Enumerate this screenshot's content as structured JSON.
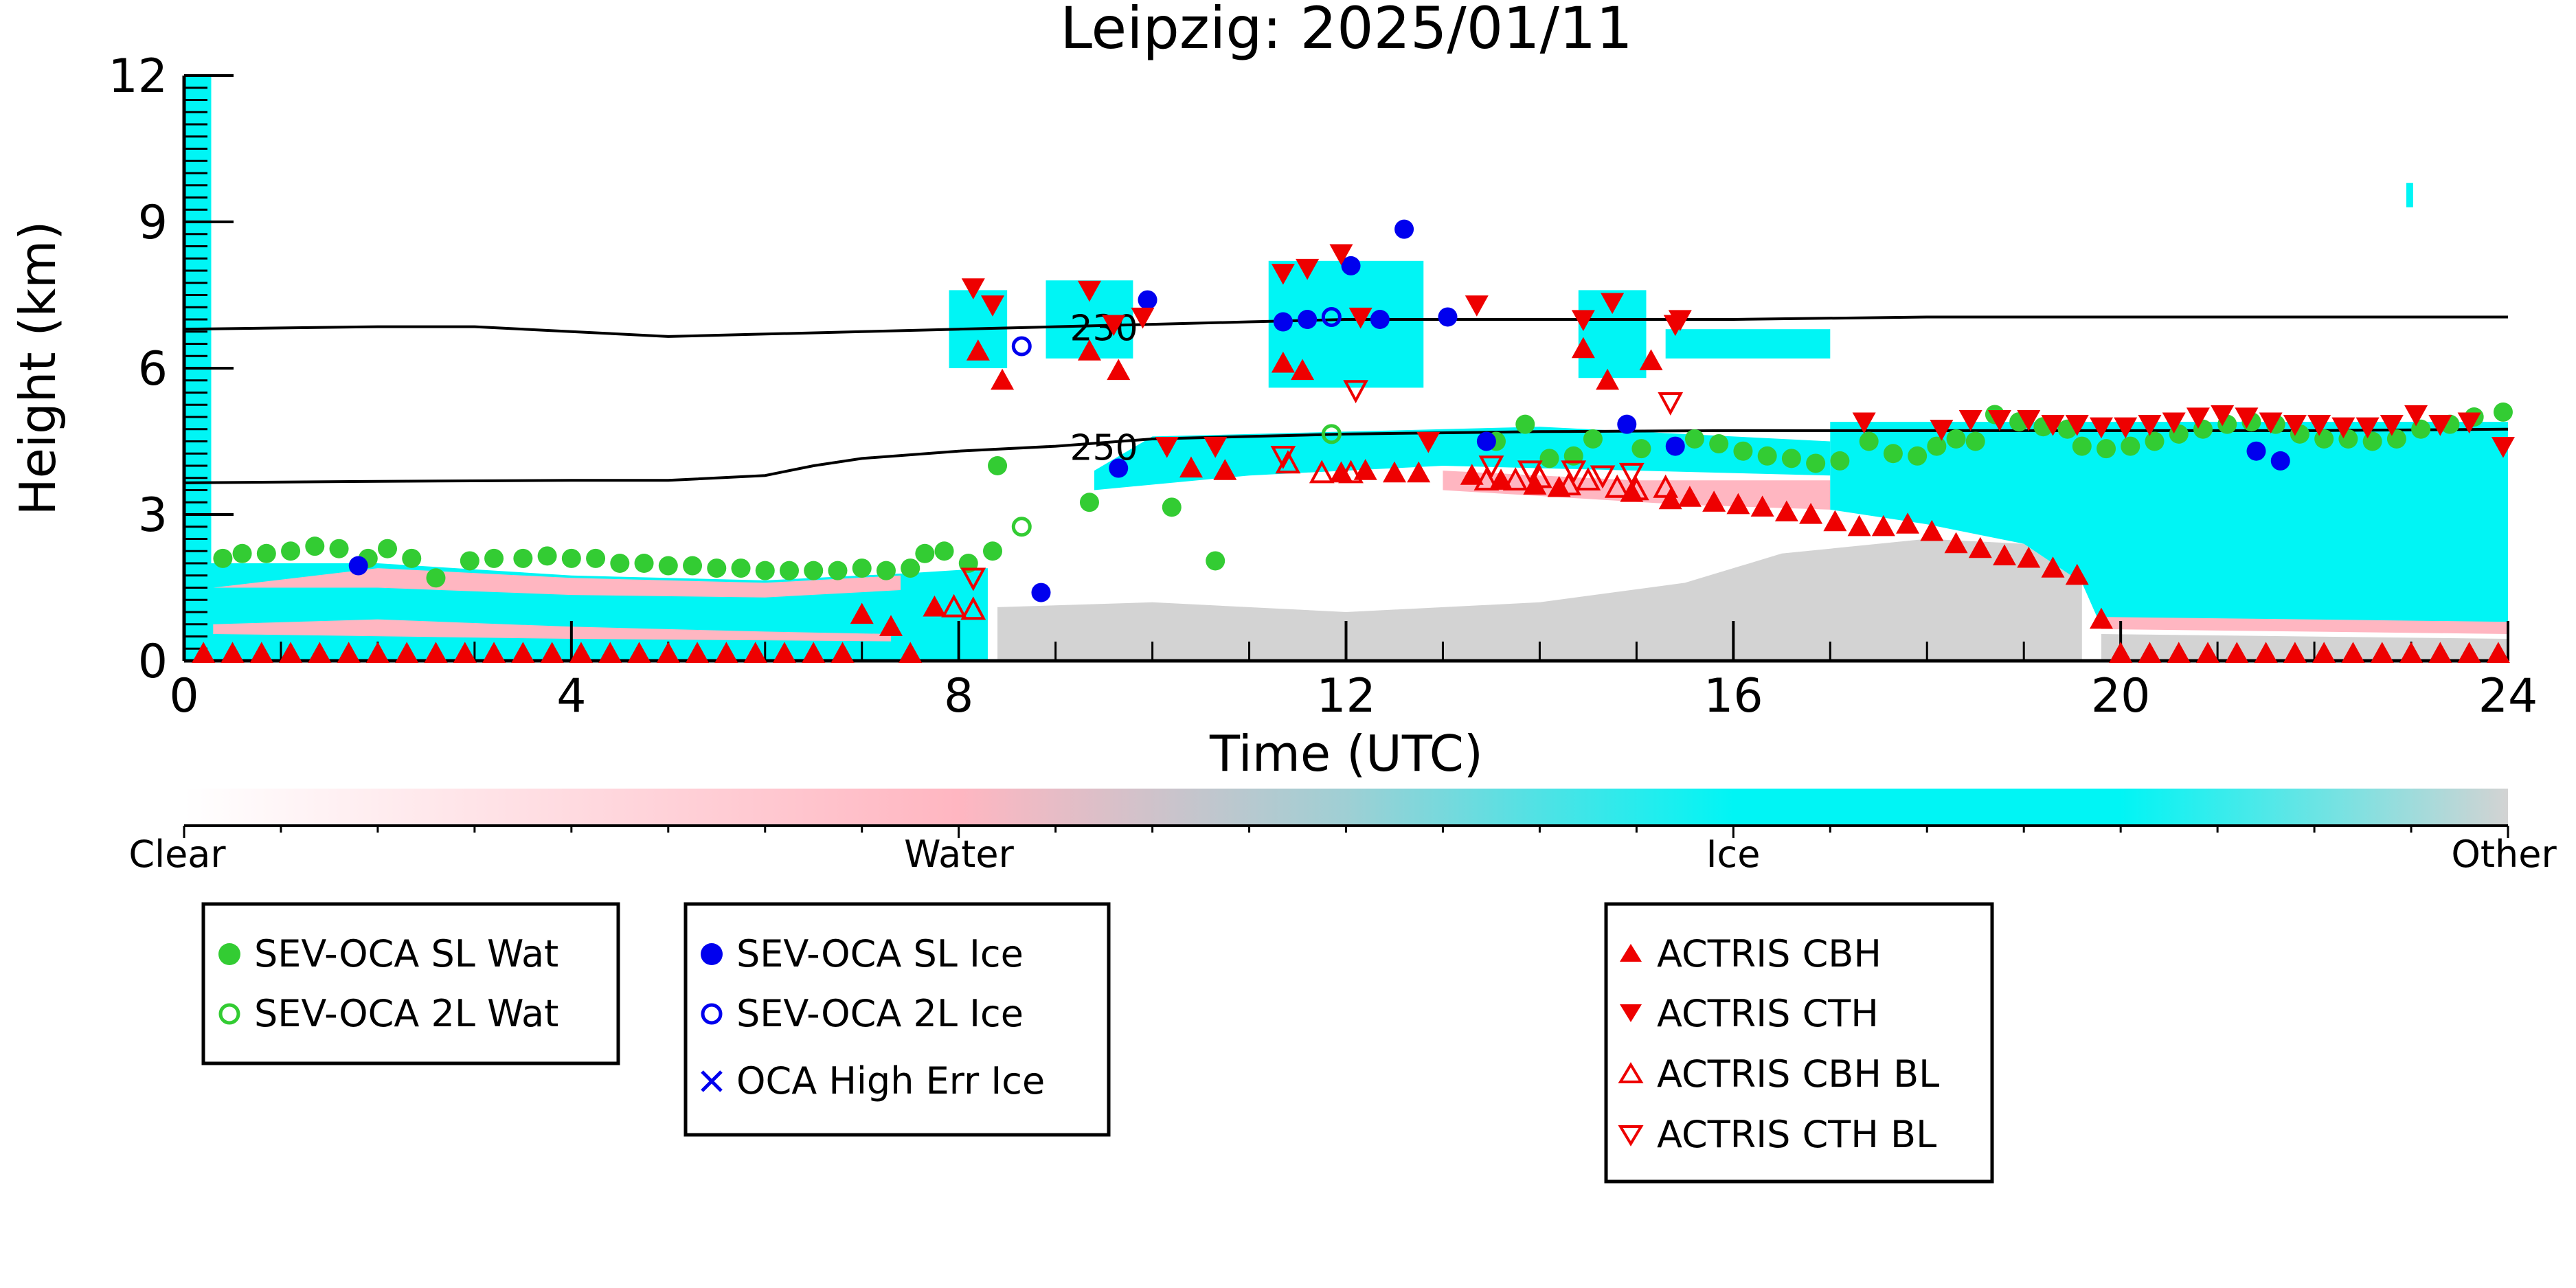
{
  "chart_data": {
    "type": "scatter",
    "title": "Leipzig: 2025/01/11",
    "xlabel": "Time (UTC)",
    "ylabel": "Height (km)",
    "xlim": [
      0,
      24
    ],
    "ylim": [
      0,
      12
    ],
    "x_ticks": [
      "0",
      "4",
      "8",
      "12",
      "16",
      "20",
      "24"
    ],
    "y_ticks": [
      "0",
      "3",
      "6",
      "9",
      "12"
    ],
    "background": "target classification curtain (Clear / Water / Ice / Other)",
    "colorbar": {
      "labels": [
        "Clear",
        "Water",
        "Ice",
        "Other"
      ],
      "colors": [
        "#ffffff",
        "#ffb6c1",
        "#00f5f5",
        "#d3d3d3"
      ]
    },
    "contours": [
      {
        "label": "230",
        "x": [
          0,
          2,
          3,
          4,
          5,
          6,
          7,
          8,
          9,
          10,
          11,
          12,
          14,
          16,
          18,
          20,
          22,
          24
        ],
        "y": [
          6.8,
          6.85,
          6.85,
          6.75,
          6.65,
          6.7,
          6.75,
          6.8,
          6.85,
          6.9,
          6.95,
          7.0,
          7.0,
          7.0,
          7.05,
          7.05,
          7.05,
          7.05
        ]
      },
      {
        "label": "250",
        "x": [
          0,
          2,
          4,
          5,
          6,
          6.5,
          7,
          8,
          9,
          10,
          11,
          12,
          14,
          16,
          18,
          20,
          22,
          24
        ],
        "y": [
          3.65,
          3.68,
          3.7,
          3.7,
          3.8,
          4.0,
          4.15,
          4.3,
          4.4,
          4.55,
          4.6,
          4.65,
          4.7,
          4.72,
          4.72,
          4.72,
          4.72,
          4.75
        ]
      }
    ],
    "series": [
      {
        "name": "SEV-OCA SL Wat",
        "color": "#33cc33",
        "marker": "circle-filled",
        "points": [
          [
            0.4,
            2.1
          ],
          [
            0.6,
            2.2
          ],
          [
            0.85,
            2.2
          ],
          [
            1.1,
            2.25
          ],
          [
            1.35,
            2.35
          ],
          [
            1.6,
            2.3
          ],
          [
            1.9,
            2.1
          ],
          [
            2.1,
            2.3
          ],
          [
            2.35,
            2.1
          ],
          [
            2.6,
            1.7
          ],
          [
            2.95,
            2.05
          ],
          [
            3.2,
            2.1
          ],
          [
            3.5,
            2.1
          ],
          [
            3.75,
            2.15
          ],
          [
            4.0,
            2.1
          ],
          [
            4.25,
            2.1
          ],
          [
            4.5,
            2.0
          ],
          [
            4.75,
            2.0
          ],
          [
            5.0,
            1.95
          ],
          [
            5.25,
            1.95
          ],
          [
            5.5,
            1.9
          ],
          [
            5.75,
            1.9
          ],
          [
            6.0,
            1.85
          ],
          [
            6.25,
            1.85
          ],
          [
            6.5,
            1.85
          ],
          [
            6.75,
            1.85
          ],
          [
            7.0,
            1.9
          ],
          [
            7.25,
            1.85
          ],
          [
            7.5,
            1.9
          ],
          [
            7.65,
            2.2
          ],
          [
            7.85,
            2.25
          ],
          [
            8.1,
            2.0
          ],
          [
            8.35,
            2.25
          ],
          [
            8.4,
            4.0
          ],
          [
            9.35,
            3.25
          ],
          [
            10.2,
            3.15
          ],
          [
            10.65,
            2.05
          ],
          [
            13.55,
            4.5
          ],
          [
            13.85,
            4.85
          ],
          [
            14.1,
            4.15
          ],
          [
            14.35,
            4.2
          ],
          [
            14.55,
            4.55
          ],
          [
            15.05,
            4.35
          ],
          [
            15.6,
            4.55
          ],
          [
            15.85,
            4.45
          ],
          [
            16.1,
            4.3
          ],
          [
            16.35,
            4.2
          ],
          [
            16.6,
            4.15
          ],
          [
            16.85,
            4.05
          ],
          [
            17.1,
            4.1
          ],
          [
            17.4,
            4.5
          ],
          [
            17.65,
            4.25
          ],
          [
            17.9,
            4.2
          ],
          [
            18.1,
            4.4
          ],
          [
            18.3,
            4.55
          ],
          [
            18.5,
            4.5
          ],
          [
            18.7,
            5.05
          ],
          [
            18.95,
            4.9
          ],
          [
            19.2,
            4.8
          ],
          [
            19.45,
            4.75
          ],
          [
            19.6,
            4.4
          ],
          [
            19.85,
            4.35
          ],
          [
            20.1,
            4.4
          ],
          [
            20.35,
            4.5
          ],
          [
            20.6,
            4.65
          ],
          [
            20.85,
            4.75
          ],
          [
            21.1,
            4.85
          ],
          [
            21.35,
            4.9
          ],
          [
            21.6,
            4.85
          ],
          [
            21.85,
            4.65
          ],
          [
            22.1,
            4.55
          ],
          [
            22.35,
            4.55
          ],
          [
            22.6,
            4.5
          ],
          [
            22.85,
            4.55
          ],
          [
            23.1,
            4.75
          ],
          [
            23.4,
            4.85
          ],
          [
            23.65,
            5.0
          ],
          [
            23.95,
            5.1
          ]
        ]
      },
      {
        "name": "SEV-OCA 2L Wat",
        "color": "#33cc33",
        "marker": "circle-open",
        "points": [
          [
            8.65,
            2.75
          ],
          [
            11.85,
            4.65
          ]
        ]
      },
      {
        "name": "SEV-OCA SL Ice",
        "color": "#0000ee",
        "marker": "circle-filled",
        "points": [
          [
            1.8,
            1.95
          ],
          [
            8.85,
            1.4
          ],
          [
            9.65,
            3.95
          ],
          [
            9.95,
            7.4
          ],
          [
            11.35,
            6.95
          ],
          [
            11.6,
            7.0
          ],
          [
            12.05,
            8.1
          ],
          [
            12.35,
            7.0
          ],
          [
            12.6,
            8.85
          ],
          [
            13.05,
            7.05
          ],
          [
            13.45,
            4.5
          ],
          [
            14.9,
            4.85
          ],
          [
            15.4,
            4.4
          ],
          [
            21.4,
            4.3
          ],
          [
            21.65,
            4.1
          ]
        ]
      },
      {
        "name": "SEV-OCA 2L Ice",
        "color": "#0000ee",
        "marker": "circle-open",
        "points": [
          [
            8.65,
            6.45
          ],
          [
            11.85,
            7.05
          ]
        ]
      },
      {
        "name": "OCA High Err Ice",
        "color": "#0000ee",
        "marker": "x",
        "points": []
      },
      {
        "name": "ACTRIS CBH",
        "color": "#ee0000",
        "marker": "triangle-up-filled",
        "points": [
          [
            0.2,
            0.15
          ],
          [
            0.5,
            0.15
          ],
          [
            0.8,
            0.15
          ],
          [
            1.1,
            0.15
          ],
          [
            1.4,
            0.15
          ],
          [
            1.7,
            0.15
          ],
          [
            2.0,
            0.15
          ],
          [
            2.3,
            0.15
          ],
          [
            2.6,
            0.15
          ],
          [
            2.9,
            0.15
          ],
          [
            3.2,
            0.15
          ],
          [
            3.5,
            0.15
          ],
          [
            3.8,
            0.15
          ],
          [
            4.1,
            0.15
          ],
          [
            4.4,
            0.15
          ],
          [
            4.7,
            0.15
          ],
          [
            5.0,
            0.15
          ],
          [
            5.3,
            0.15
          ],
          [
            5.6,
            0.15
          ],
          [
            5.9,
            0.15
          ],
          [
            6.2,
            0.15
          ],
          [
            6.5,
            0.15
          ],
          [
            6.8,
            0.15
          ],
          [
            7.0,
            0.95
          ],
          [
            7.3,
            0.7
          ],
          [
            7.5,
            0.15
          ],
          [
            7.75,
            1.1
          ],
          [
            8.2,
            6.35
          ],
          [
            8.45,
            5.75
          ],
          [
            9.35,
            6.35
          ],
          [
            9.65,
            5.95
          ],
          [
            10.4,
            3.95
          ],
          [
            10.75,
            3.9
          ],
          [
            11.35,
            6.1
          ],
          [
            11.55,
            5.95
          ],
          [
            11.95,
            3.85
          ],
          [
            12.2,
            3.9
          ],
          [
            12.5,
            3.85
          ],
          [
            12.75,
            3.85
          ],
          [
            13.3,
            3.8
          ],
          [
            13.6,
            3.7
          ],
          [
            13.95,
            3.6
          ],
          [
            14.2,
            3.55
          ],
          [
            14.45,
            6.4
          ],
          [
            14.7,
            5.75
          ],
          [
            14.95,
            3.45
          ],
          [
            15.15,
            6.15
          ],
          [
            15.35,
            3.3
          ],
          [
            15.55,
            3.35
          ],
          [
            15.8,
            3.25
          ],
          [
            16.05,
            3.2
          ],
          [
            16.3,
            3.15
          ],
          [
            16.55,
            3.05
          ],
          [
            16.8,
            3.0
          ],
          [
            17.05,
            2.85
          ],
          [
            17.3,
            2.75
          ],
          [
            17.55,
            2.75
          ],
          [
            17.8,
            2.8
          ],
          [
            18.05,
            2.65
          ],
          [
            18.3,
            2.4
          ],
          [
            18.55,
            2.3
          ],
          [
            18.8,
            2.15
          ],
          [
            19.05,
            2.1
          ],
          [
            19.3,
            1.9
          ],
          [
            19.55,
            1.75
          ],
          [
            19.8,
            0.85
          ],
          [
            20.0,
            0.15
          ],
          [
            20.3,
            0.15
          ],
          [
            20.6,
            0.15
          ],
          [
            20.9,
            0.15
          ],
          [
            21.2,
            0.15
          ],
          [
            21.5,
            0.15
          ],
          [
            21.8,
            0.15
          ],
          [
            22.1,
            0.15
          ],
          [
            22.4,
            0.15
          ],
          [
            22.7,
            0.15
          ],
          [
            23.0,
            0.15
          ],
          [
            23.3,
            0.15
          ],
          [
            23.6,
            0.15
          ],
          [
            23.9,
            0.15
          ]
        ]
      },
      {
        "name": "ACTRIS CTH",
        "color": "#ee0000",
        "marker": "triangle-down-filled",
        "points": [
          [
            8.15,
            7.65
          ],
          [
            8.35,
            7.3
          ],
          [
            9.35,
            7.6
          ],
          [
            9.6,
            6.9
          ],
          [
            9.9,
            7.05
          ],
          [
            10.15,
            4.4
          ],
          [
            10.65,
            4.4
          ],
          [
            11.35,
            7.95
          ],
          [
            11.6,
            8.05
          ],
          [
            11.95,
            8.35
          ],
          [
            12.15,
            7.05
          ],
          [
            12.85,
            4.5
          ],
          [
            13.35,
            7.3
          ],
          [
            14.45,
            7.0
          ],
          [
            14.75,
            7.35
          ],
          [
            15.4,
            6.9
          ],
          [
            15.45,
            7.0
          ],
          [
            17.35,
            4.9
          ],
          [
            18.15,
            4.75
          ],
          [
            18.45,
            4.95
          ],
          [
            18.75,
            4.95
          ],
          [
            19.05,
            4.95
          ],
          [
            19.3,
            4.85
          ],
          [
            19.55,
            4.85
          ],
          [
            19.8,
            4.8
          ],
          [
            20.05,
            4.8
          ],
          [
            20.3,
            4.85
          ],
          [
            20.55,
            4.9
          ],
          [
            20.8,
            5.0
          ],
          [
            21.05,
            5.05
          ],
          [
            21.3,
            5.0
          ],
          [
            21.55,
            4.9
          ],
          [
            21.8,
            4.85
          ],
          [
            22.05,
            4.85
          ],
          [
            22.3,
            4.8
          ],
          [
            22.55,
            4.8
          ],
          [
            22.8,
            4.85
          ],
          [
            23.05,
            5.05
          ],
          [
            23.3,
            4.85
          ],
          [
            23.6,
            4.9
          ],
          [
            23.95,
            4.4
          ]
        ]
      },
      {
        "name": "ACTRIS CBH BL",
        "color": "#ee0000",
        "marker": "triangle-up-open",
        "points": [
          [
            7.95,
            1.1
          ],
          [
            8.15,
            1.05
          ],
          [
            11.4,
            4.05
          ],
          [
            11.75,
            3.85
          ],
          [
            12.05,
            3.85
          ],
          [
            13.45,
            3.7
          ],
          [
            13.75,
            3.7
          ],
          [
            14.0,
            3.75
          ],
          [
            14.3,
            3.6
          ],
          [
            14.5,
            3.7
          ],
          [
            14.8,
            3.55
          ],
          [
            15.0,
            3.5
          ],
          [
            15.3,
            3.55
          ]
        ]
      },
      {
        "name": "ACTRIS CTH BL",
        "color": "#ee0000",
        "marker": "triangle-down-open",
        "points": [
          [
            8.15,
            1.7
          ],
          [
            11.35,
            4.2
          ],
          [
            12.1,
            5.55
          ],
          [
            13.5,
            4.0
          ],
          [
            13.9,
            3.9
          ],
          [
            14.35,
            3.9
          ],
          [
            14.65,
            3.8
          ],
          [
            14.95,
            3.85
          ],
          [
            15.35,
            5.3
          ]
        ]
      }
    ],
    "legend_groups": [
      [
        "SEV-OCA SL Wat",
        "SEV-OCA 2L Wat"
      ],
      [
        "SEV-OCA SL Ice",
        "SEV-OCA 2L Ice",
        "OCA High Err Ice"
      ],
      [
        "ACTRIS CBH",
        "ACTRIS CTH",
        "ACTRIS CBH BL",
        "ACTRIS CTH BL"
      ]
    ]
  }
}
